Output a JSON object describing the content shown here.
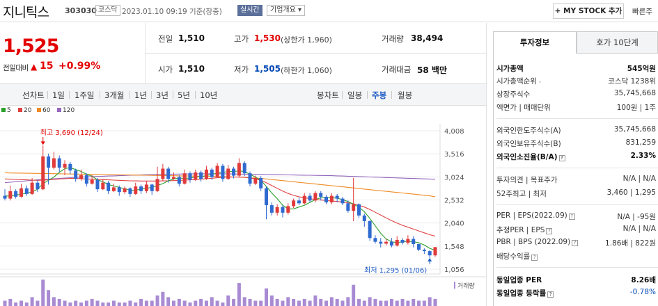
{
  "header": {
    "stock_name": "지니틱스",
    "stock_code": "303030",
    "market": "코스닥",
    "datetime": "2023.01.10 09:19 기준(장중)",
    "realtime_label": "실시간",
    "overview_label": "기업개요 ▾",
    "mystock_label": "+ MY STOCK 추가",
    "quick_search_label": "빠른주"
  },
  "price": {
    "current": "1,525",
    "change_label": "전일대비",
    "change_arrow": "▲",
    "change_value": "15",
    "change_percent": "+0.99%",
    "up_color": "#e30000"
  },
  "quote": {
    "prev_close_label": "전일",
    "prev_close": "1,510",
    "high_label": "고가",
    "high": "1,530",
    "upper_limit": "(상한가 1,960)",
    "volume_label": "거래량",
    "volume": "38,494",
    "open_label": "시가",
    "open": "1,510",
    "low_label": "저가",
    "low": "1,505",
    "lower_limit": "(하한가 1,060)",
    "amount_label": "거래대금",
    "amount": "58 백만"
  },
  "chart_tabs": {
    "line_label": "선차트",
    "line_periods": [
      "1일",
      "1주일",
      "3개월",
      "1년",
      "3년",
      "5년",
      "10년"
    ],
    "candle_label": "봉차트",
    "candle_periods": [
      "일봉",
      "주봉",
      "월봉"
    ],
    "active_candle": "주봉"
  },
  "chart_data": {
    "type": "candlestick",
    "title": "",
    "interval": "주봉",
    "y_ticks": [
      "4,008",
      "3,516",
      "3,024",
      "2,532",
      "2,040",
      "1,548",
      "1,056"
    ],
    "ylim": [
      1056,
      4008
    ],
    "grid": true,
    "legend": {
      "position": "top-left",
      "items": [
        {
          "name": "5",
          "color": "#2ca02c"
        },
        {
          "name": "20",
          "color": "#e04040"
        },
        {
          "name": "60",
          "color": "#f08a24"
        },
        {
          "name": "120",
          "color": "#9467bd"
        }
      ]
    },
    "high_annotation": "최고 3,690 (12/24)",
    "low_annotation": "최저 1,295 (01/06)",
    "volume_label": "거래량",
    "candles": [
      [
        2620,
        2560,
        2760,
        2520
      ],
      [
        2560,
        2720,
        2840,
        2520
      ],
      [
        2720,
        2600,
        2760,
        2560
      ],
      [
        2600,
        2780,
        2880,
        2580
      ],
      [
        2780,
        2660,
        2840,
        2620
      ],
      [
        2660,
        2900,
        3000,
        2640
      ],
      [
        2900,
        2760,
        2960,
        2700
      ],
      [
        2760,
        3460,
        3690,
        2740
      ],
      [
        3460,
        3220,
        3520,
        2860
      ],
      [
        3220,
        3420,
        3560,
        3180
      ],
      [
        3420,
        3220,
        3480,
        3120
      ],
      [
        3220,
        3300,
        3380,
        3060
      ],
      [
        3300,
        3160,
        3340,
        3080
      ],
      [
        3160,
        2980,
        3200,
        2920
      ],
      [
        2980,
        3060,
        3180,
        2940
      ],
      [
        3060,
        2880,
        3100,
        2820
      ],
      [
        2880,
        2960,
        3060,
        2860
      ],
      [
        2960,
        2760,
        3000,
        2700
      ],
      [
        2760,
        2900,
        2980,
        2740
      ],
      [
        2900,
        2720,
        2940,
        2660
      ],
      [
        2720,
        2800,
        2880,
        2700
      ],
      [
        2800,
        2700,
        2840,
        2620
      ],
      [
        2700,
        2780,
        2820,
        2660
      ],
      [
        2780,
        2660,
        2800,
        2600
      ],
      [
        2660,
        2820,
        2900,
        2640
      ],
      [
        2820,
        2720,
        2860,
        2660
      ],
      [
        2720,
        2860,
        2940,
        2680
      ],
      [
        2860,
        2720,
        2880,
        2640
      ],
      [
        2720,
        2980,
        3240,
        2700
      ],
      [
        2980,
        3200,
        3300,
        2940
      ],
      [
        3200,
        2980,
        3240,
        2900
      ],
      [
        2980,
        3020,
        3120,
        2960
      ],
      [
        3020,
        2880,
        3060,
        2820
      ],
      [
        2880,
        3100,
        3180,
        2860
      ],
      [
        3100,
        2960,
        3140,
        2900
      ],
      [
        2960,
        3120,
        3180,
        2940
      ],
      [
        3120,
        2980,
        3160,
        2920
      ],
      [
        2980,
        3180,
        3260,
        2960
      ],
      [
        3180,
        3020,
        3220,
        2960
      ],
      [
        3020,
        3260,
        3320,
        3000
      ],
      [
        3260,
        2980,
        3300,
        2920
      ],
      [
        2980,
        3200,
        3280,
        2960
      ],
      [
        3200,
        3050,
        3240,
        2990
      ],
      [
        3050,
        3320,
        3420,
        3020
      ],
      [
        3320,
        3100,
        3360,
        3040
      ],
      [
        3100,
        2880,
        3140,
        2820
      ],
      [
        2880,
        3000,
        3050,
        2850
      ],
      [
        3000,
        2780,
        3040,
        2720
      ],
      [
        2780,
        2420,
        2820,
        2120
      ],
      [
        2420,
        2260,
        2480,
        2200
      ],
      [
        2260,
        2380,
        2440,
        2200
      ],
      [
        2380,
        2260,
        2420,
        2160
      ],
      [
        2260,
        2400,
        2460,
        2220
      ],
      [
        2400,
        2520,
        2560,
        2360
      ],
      [
        2520,
        2460,
        2580,
        2420
      ],
      [
        2460,
        2620,
        2680,
        2440
      ],
      [
        2620,
        2520,
        2680,
        2480
      ],
      [
        2520,
        2680,
        2720,
        2480
      ],
      [
        2680,
        2600,
        2720,
        2520
      ],
      [
        2600,
        2480,
        2640,
        2440
      ],
      [
        2480,
        2620,
        2680,
        2440
      ],
      [
        2620,
        2560,
        2660,
        2480
      ],
      [
        2560,
        2460,
        2600,
        2420
      ],
      [
        2460,
        2300,
        2520,
        2260
      ],
      [
        2300,
        2440,
        3000,
        2080
      ],
      [
        2440,
        2200,
        2460,
        2140
      ],
      [
        2200,
        2080,
        2240,
        1960
      ],
      [
        2080,
        1720,
        2100,
        1660
      ],
      [
        1720,
        1640,
        1780,
        1600
      ],
      [
        1640,
        1600,
        1720,
        1520
      ],
      [
        1600,
        1640,
        1700,
        1560
      ],
      [
        1640,
        1560,
        1720,
        1520
      ],
      [
        1560,
        1680,
        1760,
        1540
      ],
      [
        1680,
        1620,
        1720,
        1580
      ],
      [
        1620,
        1700,
        1780,
        1580
      ],
      [
        1700,
        1590,
        1760,
        1520
      ],
      [
        1590,
        1470,
        1600,
        1440
      ],
      [
        1470,
        1440,
        1500,
        1380
      ],
      [
        1440,
        1350,
        1460,
        1295
      ],
      [
        1350,
        1525,
        1530,
        1320
      ]
    ],
    "ma5": [
      2620,
      2610,
      2640,
      2650,
      2680,
      2700,
      2760,
      2880,
      2950,
      3020,
      3120,
      3200,
      3220,
      3180,
      3140,
      3080,
      3040,
      2960,
      2920,
      2860,
      2830,
      2800,
      2770,
      2740,
      2740,
      2760,
      2780,
      2800,
      2840,
      2880,
      2940,
      2980,
      3000,
      2990,
      3000,
      3020,
      3030,
      3050,
      3080,
      3100,
      3120,
      3140,
      3140,
      3150,
      3140,
      3080,
      3020,
      2950,
      2820,
      2680,
      2560,
      2420,
      2340,
      2340,
      2380,
      2420,
      2480,
      2540,
      2580,
      2580,
      2580,
      2570,
      2540,
      2500,
      2440,
      2380,
      2280,
      2140,
      1980,
      1820,
      1700,
      1640,
      1620,
      1640,
      1650,
      1640,
      1620,
      1570,
      1500,
      1460
    ],
    "ma20": [
      2980,
      2975,
      2970,
      2965,
      2960,
      2955,
      2950,
      2955,
      2960,
      2970,
      2980,
      2985,
      2990,
      2990,
      2985,
      2980,
      2975,
      2970,
      2965,
      2960,
      2955,
      2950,
      2945,
      2940,
      2938,
      2936,
      2935,
      2935,
      2936,
      2938,
      2940,
      2945,
      2950,
      2955,
      2960,
      2968,
      2975,
      2985,
      2995,
      3005,
      3015,
      3020,
      3020,
      3020,
      3015,
      3000,
      2980,
      2950,
      2900,
      2840,
      2780,
      2720,
      2670,
      2630,
      2600,
      2580,
      2560,
      2540,
      2530,
      2520,
      2510,
      2500,
      2490,
      2470,
      2450,
      2420,
      2380,
      2330,
      2270,
      2210,
      2150,
      2090,
      2040,
      1990,
      1950,
      1910,
      1870,
      1830,
      1790,
      1760
    ],
    "ma60": [
      3110,
      3108,
      3106,
      3104,
      3102,
      3100,
      3098,
      3096,
      3094,
      3092,
      3090,
      3088,
      3086,
      3084,
      3082,
      3080,
      3078,
      3076,
      3074,
      3072,
      3070,
      3068,
      3066,
      3064,
      3062,
      3060,
      3058,
      3056,
      3054,
      3052,
      3050,
      3048,
      3046,
      3044,
      3042,
      3040,
      3038,
      3036,
      3034,
      3032,
      3030,
      3026,
      3022,
      3018,
      3012,
      3006,
      2998,
      2990,
      2980,
      2968,
      2956,
      2944,
      2932,
      2920,
      2908,
      2896,
      2884,
      2872,
      2860,
      2848,
      2836,
      2824,
      2812,
      2800,
      2788,
      2776,
      2764,
      2752,
      2740,
      2728,
      2716,
      2704,
      2692,
      2680,
      2668,
      2656,
      2644,
      2632,
      2620,
      2600
    ],
    "ma120": [
      2900,
      2910,
      2920,
      2930,
      2940,
      2950,
      2960,
      2968,
      2976,
      2984,
      2992,
      3000,
      3006,
      3012,
      3018,
      3024,
      3030,
      3034,
      3038,
      3042,
      3046,
      3050,
      3054,
      3058,
      3062,
      3066,
      3070,
      3074,
      3076,
      3078,
      3080,
      3082,
      3084,
      3086,
      3088,
      3090,
      3090,
      3090,
      3090,
      3090,
      3090,
      3088,
      3086,
      3084,
      3082,
      3080,
      3078,
      3076,
      3074,
      3072,
      3070,
      3068,
      3066,
      3064,
      3062,
      3060,
      3058,
      3056,
      3054,
      3052,
      3050,
      3046,
      3042,
      3038,
      3034,
      3030,
      3026,
      3022,
      3018,
      3014,
      3010,
      3006,
      3002,
      2998,
      2994,
      2990,
      2986,
      2982,
      2978,
      2972
    ],
    "volume": [
      3,
      4,
      2,
      3,
      2,
      5,
      3,
      15,
      9,
      5,
      4,
      3,
      2,
      3,
      2,
      3,
      4,
      3,
      2,
      2,
      3,
      2,
      2,
      3,
      2,
      4,
      3,
      3,
      6,
      8,
      5,
      3,
      4,
      3,
      2,
      3,
      4,
      3,
      5,
      3,
      2,
      6,
      4,
      13,
      5,
      4,
      3,
      3,
      10,
      6,
      4,
      3,
      5,
      4,
      3,
      4,
      3,
      6,
      4,
      3,
      5,
      4,
      3,
      5,
      12,
      4,
      3,
      5,
      4,
      3,
      3,
      4,
      3,
      4,
      3,
      4,
      3,
      3,
      5,
      4
    ]
  },
  "invest_info": {
    "tab_active": "투자정보",
    "tab_2": "호가 10단계",
    "rows1": [
      {
        "label": "시가총액",
        "value": "545억원"
      },
      {
        "label": "시가총액순위",
        "value": "코스닥 1238위"
      },
      {
        "label": "상장주식수",
        "value": "35,745,668"
      },
      {
        "label": "액면가 | 매매단위",
        "value": "100원 | 1주"
      }
    ],
    "rows2": [
      {
        "label": "외국인한도주식수(A)",
        "value": "35,745,668"
      },
      {
        "label": "외국인보유주식수(B)",
        "value": "831,259"
      },
      {
        "label": "외국인소진율(B/A)",
        "value": "2.33%"
      }
    ],
    "rows3": [
      {
        "label": "투자의견 | 목표주가",
        "value": "N/A | N/A"
      },
      {
        "label": "52주최고 | 최저",
        "value": "3,460 | 1,295"
      }
    ],
    "rows4": [
      {
        "label": "PER | EPS(2022.09)",
        "value": "N/A | -95원"
      },
      {
        "label": "추정PER | EPS",
        "value": "N/A | N/A"
      },
      {
        "label": "PBR | BPS (2022.09)",
        "value": "1.86배 | 822원"
      },
      {
        "label": "배당수익률",
        "value": ""
      }
    ],
    "rows5": [
      {
        "label": "동일업종 PER",
        "value": "8.26배"
      },
      {
        "label": "동일업종 등락률",
        "value": "-0.78%"
      }
    ],
    "help_icon_glyph": "?"
  }
}
